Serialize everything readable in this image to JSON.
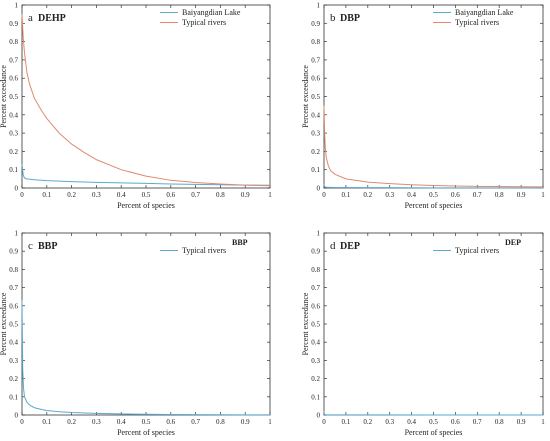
{
  "chart_data": [
    {
      "type": "line",
      "panel_label": "a",
      "title": "DEHP",
      "xlabel": "Percent of species",
      "ylabel": "Percent exceedance",
      "xlim": [
        0,
        1
      ],
      "ylim": [
        0,
        1
      ],
      "xticks": [
        "0",
        "0.1",
        "0.2",
        "0.3",
        "0.4",
        "0.5",
        "0.6",
        "0.7",
        "0.8",
        "0.9",
        "1"
      ],
      "yticks": [
        "0",
        "0.1",
        "0.2",
        "0.3",
        "0.4",
        "0.5",
        "0.6",
        "0.7",
        "0.8",
        "0.9",
        "1"
      ],
      "grid": false,
      "legend_position": "top-right",
      "legend_title": "",
      "series": [
        {
          "name": "Baiyangdian Lake",
          "color": "#5aa9cf",
          "x": [
            0,
            0.005,
            0.01,
            0.02,
            0.05,
            0.1,
            0.2,
            0.3,
            0.4,
            0.5,
            0.6,
            0.7,
            0.8,
            0.9,
            1.0
          ],
          "y": [
            0.13,
            0.07,
            0.055,
            0.05,
            0.045,
            0.04,
            0.035,
            0.031,
            0.028,
            0.025,
            0.022,
            0.02,
            0.018,
            0.016,
            0.015
          ]
        },
        {
          "name": "Typical rivers",
          "color": "#e0896e",
          "x": [
            0,
            0.005,
            0.01,
            0.02,
            0.03,
            0.05,
            0.08,
            0.1,
            0.15,
            0.2,
            0.25,
            0.3,
            0.4,
            0.5,
            0.6,
            0.7,
            0.8,
            0.9,
            1.0
          ],
          "y": [
            0.95,
            0.82,
            0.74,
            0.63,
            0.57,
            0.49,
            0.42,
            0.38,
            0.3,
            0.24,
            0.195,
            0.155,
            0.1,
            0.065,
            0.042,
            0.03,
            0.022,
            0.016,
            0.012
          ]
        }
      ]
    },
    {
      "type": "line",
      "panel_label": "b",
      "title": "DBP",
      "xlabel": "Percent of species",
      "ylabel": "Percent exceedance",
      "xlim": [
        0,
        1
      ],
      "ylim": [
        0,
        1
      ],
      "xticks": [
        "0",
        "0.1",
        "0.2",
        "0.3",
        "0.4",
        "0.5",
        "0.6",
        "0.7",
        "0.8",
        "0.9",
        "1"
      ],
      "yticks": [
        "0",
        "0.1",
        "0.2",
        "0.3",
        "0.4",
        "0.5",
        "0.6",
        "0.7",
        "0.8",
        "0.9",
        "1"
      ],
      "grid": false,
      "legend_position": "top-right",
      "legend_title": "",
      "series": [
        {
          "name": "Baiyangdian Lake",
          "color": "#5aa9cf",
          "x": [
            0,
            0.003,
            0.01,
            0.05,
            0.2,
            0.5,
            1.0
          ],
          "y": [
            0.02,
            0.006,
            0.004,
            0.003,
            0.002,
            0.001,
            0.001
          ]
        },
        {
          "name": "Typical rivers",
          "color": "#e0896e",
          "x": [
            0,
            0.003,
            0.006,
            0.01,
            0.02,
            0.03,
            0.05,
            0.1,
            0.2,
            0.3,
            0.4,
            0.5,
            0.6,
            0.7,
            0.8,
            0.9,
            1.0
          ],
          "y": [
            0.45,
            0.3,
            0.22,
            0.17,
            0.12,
            0.095,
            0.075,
            0.05,
            0.032,
            0.024,
            0.018,
            0.014,
            0.011,
            0.009,
            0.008,
            0.007,
            0.006
          ]
        }
      ]
    },
    {
      "type": "line",
      "panel_label": "c",
      "title": "BBP",
      "xlabel": "Percent of species",
      "ylabel": "Percent exceedance",
      "xlim": [
        0,
        1
      ],
      "ylim": [
        0,
        1
      ],
      "xticks": [
        "0",
        "0.1",
        "0.2",
        "0.3",
        "0.4",
        "0.5",
        "0.6",
        "0.7",
        "0.8",
        "0.9",
        "1"
      ],
      "yticks": [
        "0",
        "0.1",
        "0.2",
        "0.3",
        "0.4",
        "0.5",
        "0.6",
        "0.7",
        "0.8",
        "0.9",
        "1"
      ],
      "grid": false,
      "legend_position": "top-right",
      "legend_title": "BBP",
      "series": [
        {
          "name": "Typical rivers",
          "color": "#5aa9cf",
          "x": [
            0,
            0.003,
            0.006,
            0.01,
            0.02,
            0.03,
            0.05,
            0.08,
            0.1,
            0.15,
            0.2,
            0.3,
            0.4,
            0.5,
            0.6,
            0.7,
            0.8,
            0.9,
            1.0
          ],
          "y": [
            0.63,
            0.25,
            0.15,
            0.1,
            0.07,
            0.055,
            0.04,
            0.03,
            0.025,
            0.018,
            0.014,
            0.009,
            0.006,
            0.004,
            0.003,
            0.002,
            0.0015,
            0.001,
            0.001
          ]
        }
      ]
    },
    {
      "type": "line",
      "panel_label": "d",
      "title": "DEP",
      "xlabel": "Percent of species",
      "ylabel": "Percent exceedance",
      "xlim": [
        0,
        1
      ],
      "ylim": [
        0,
        1
      ],
      "xticks": [
        "0",
        "0.1",
        "0.2",
        "0.3",
        "0.4",
        "0.5",
        "0.6",
        "0.7",
        "0.8",
        "0.9",
        "1"
      ],
      "yticks": [
        "0",
        "0.1",
        "0.2",
        "0.3",
        "0.4",
        "0.5",
        "0.6",
        "0.7",
        "0.8",
        "0.9",
        "1"
      ],
      "grid": false,
      "legend_position": "top-right",
      "legend_title": "DEP",
      "series": [
        {
          "name": "Typical rivers",
          "color": "#5aa9cf",
          "x": [
            0,
            0.002,
            0.01,
            0.1,
            0.5,
            1.0
          ],
          "y": [
            0.02,
            0.003,
            0.001,
            0.0005,
            0.0002,
            0.0001
          ]
        }
      ]
    }
  ]
}
